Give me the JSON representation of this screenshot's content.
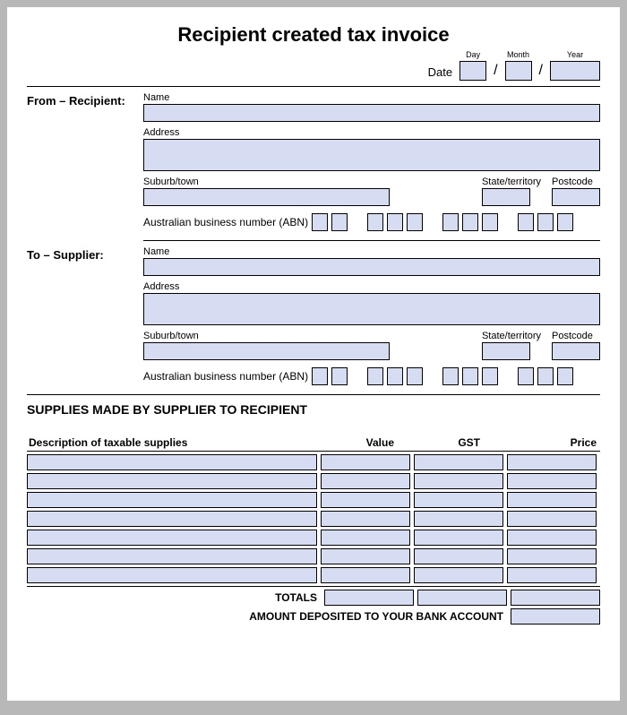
{
  "title": "Recipient created tax invoice",
  "date": {
    "label": "Date",
    "day_label": "Day",
    "month_label": "Month",
    "year_label": "Year"
  },
  "recipient": {
    "section_label": "From – Recipient:",
    "name_label": "Name",
    "address_label": "Address",
    "suburb_label": "Suburb/town",
    "state_label": "State/territory",
    "postcode_label": "Postcode",
    "abn_label": "Australian business number (ABN)"
  },
  "supplier": {
    "section_label": "To – Supplier:",
    "name_label": "Name",
    "address_label": "Address",
    "suburb_label": "Suburb/town",
    "state_label": "State/territory",
    "postcode_label": "Postcode",
    "abn_label": "Australian business number (ABN)"
  },
  "supplies": {
    "heading": "SUPPLIES MADE BY SUPPLIER TO RECIPIENT",
    "col_desc": "Description of taxable supplies",
    "col_value": "Value",
    "col_gst": "GST",
    "col_price": "Price",
    "row_count": 7,
    "totals_label": "TOTALS",
    "amount_label": "AMOUNT DEPOSITED TO YOUR BANK ACCOUNT"
  },
  "colors": {
    "field_fill": "#d6ddf2",
    "border": "#000000",
    "page_bg": "#ffffff",
    "outer_bg": "#b8b8b8"
  }
}
